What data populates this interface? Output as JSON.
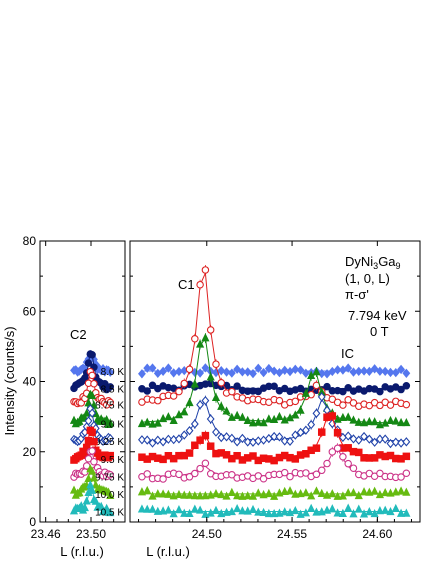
{
  "chart_data": {
    "type": "scatter",
    "ylabel": "Intensity  (counts/s)",
    "ylim": [
      0,
      80
    ],
    "yticks": [
      0,
      20,
      40,
      60,
      80
    ],
    "xlabel_left": "L  (r.l.u.)",
    "xlabel_right": "L  (r.l.u.)",
    "panels": [
      {
        "name": "left",
        "xlim": [
          23.455,
          23.53
        ],
        "xticks": [
          23.46,
          23.5
        ],
        "xtick_labels": [
          "23.46",
          "23.50"
        ]
      },
      {
        "name": "right",
        "xlim": [
          24.455,
          24.625
        ],
        "xticks": [
          24.5,
          24.55,
          24.6
        ],
        "xtick_labels": [
          "24.50",
          "24.55",
          "24.60"
        ]
      }
    ],
    "annotations": {
      "compound": "DyNi",
      "compound_sub1": "3",
      "compound_mid": "Ga",
      "compound_sub2": "9",
      "reflection": "(1, 0, L)",
      "polarization": "π-σ'",
      "energy": "7.794 keV",
      "field": "0 T",
      "peak_c2": "C2",
      "peak_c1": "C1",
      "peak_ic": "IC"
    },
    "series": [
      {
        "name": "8.0 K",
        "color": "#5577ee",
        "marker": "diamond",
        "filled": true,
        "baseline": 43,
        "c2": 5,
        "c1": 0,
        "ic_pos": 24.565,
        "ic": 0
      },
      {
        "name": "8.5 K",
        "color": "#0a1a6e",
        "marker": "circle",
        "filled": true,
        "baseline": 38,
        "c2": 11,
        "c1": 2,
        "ic_pos": 24.565,
        "ic": 0
      },
      {
        "name": "8.75 K",
        "color": "#dd2222",
        "marker": "circle",
        "filled": false,
        "baseline": 33.5,
        "c2": 10,
        "c1": 40,
        "ic_pos": 24.565,
        "ic": 5
      },
      {
        "name": "9.0 K",
        "color": "#148814",
        "marker": "triangle",
        "filled": true,
        "baseline": 28,
        "c2": 9,
        "c1": 26,
        "ic_pos": 24.563,
        "ic": 15
      },
      {
        "name": "9.25 K",
        "color": "#2244aa",
        "marker": "diamond",
        "filled": false,
        "baseline": 23,
        "c2": 9,
        "c1": 12,
        "ic_pos": 24.568,
        "ic": 12
      },
      {
        "name": "9.5 K",
        "color": "#ee1111",
        "marker": "square",
        "filled": true,
        "baseline": 18,
        "c2": 9,
        "c1": 7,
        "ic_pos": 24.572,
        "ic": 13
      },
      {
        "name": "9.75 K",
        "color": "#cc3388",
        "marker": "circle",
        "filled": false,
        "baseline": 13,
        "c2": 8,
        "c1": 3,
        "ic_pos": 24.576,
        "ic": 8
      },
      {
        "name": "10.0 K",
        "color": "#66bb11",
        "marker": "triangle",
        "filled": true,
        "baseline": 8,
        "c2": 7,
        "c1": 0,
        "ic_pos": 24.565,
        "ic": 0
      },
      {
        "name": "10.5 K",
        "color": "#22bbbb",
        "marker": "triangle",
        "filled": true,
        "baseline": 3,
        "c2": 7,
        "c1": 0,
        "ic_pos": 24.565,
        "ic": 0
      }
    ],
    "peak_centers": {
      "c2": 23.5,
      "c1": 24.498
    },
    "grid": false,
    "legend": "inline temperature labels"
  }
}
